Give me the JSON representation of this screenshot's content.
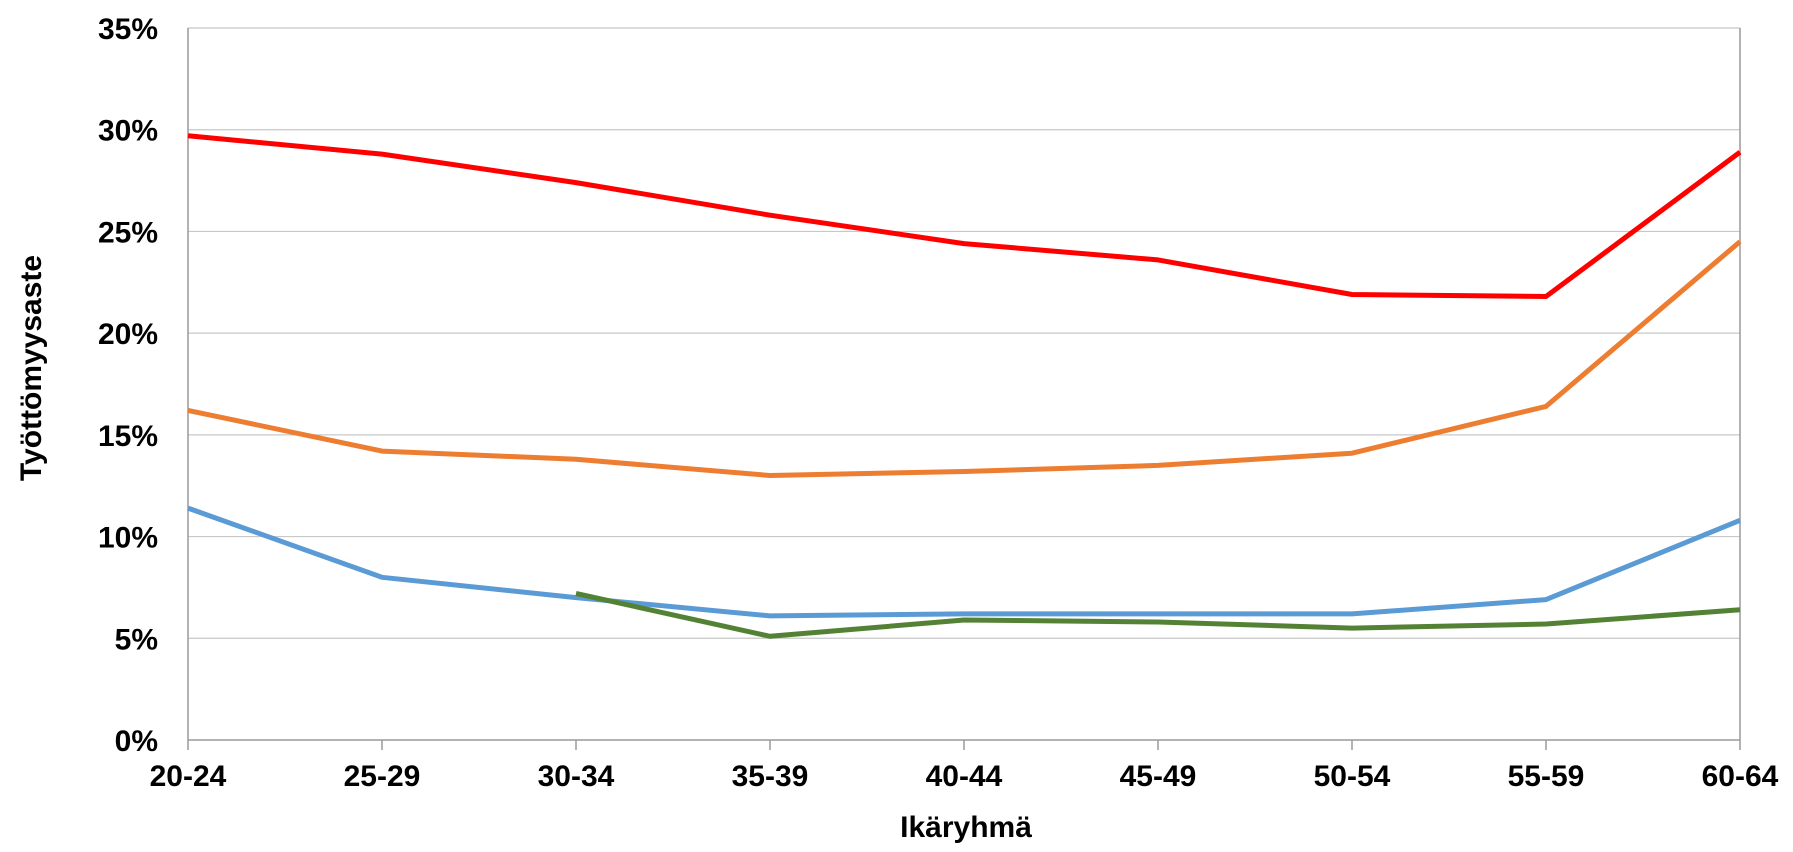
{
  "chart_data": {
    "type": "line",
    "title": "",
    "xlabel": "Ikäryhmä",
    "ylabel": "Työttömyysaste",
    "categories": [
      "20-24",
      "25-29",
      "30-34",
      "35-39",
      "40-44",
      "45-49",
      "50-54",
      "55-59",
      "60-64"
    ],
    "ylim": [
      0,
      35
    ],
    "ytick_values": [
      0,
      5,
      10,
      15,
      20,
      25,
      30,
      35
    ],
    "ytick_labels": [
      "0%",
      "5%",
      "10%",
      "15%",
      "20%",
      "25%",
      "30%",
      "35%"
    ],
    "grid": true,
    "legend": "none",
    "series": [
      {
        "color": "#ff0000",
        "values": [
          29.7,
          28.8,
          27.4,
          25.8,
          24.4,
          23.6,
          21.9,
          21.8,
          28.9
        ]
      },
      {
        "color": "#ed7d31",
        "values": [
          16.2,
          14.2,
          13.8,
          13.0,
          13.2,
          13.5,
          14.1,
          16.4,
          24.5
        ]
      },
      {
        "color": "#5b9bd5",
        "values": [
          11.4,
          8.0,
          7.0,
          6.1,
          6.2,
          6.2,
          6.2,
          6.9,
          10.8
        ]
      },
      {
        "color": "#548235",
        "values": [
          null,
          null,
          7.2,
          5.1,
          5.9,
          5.8,
          5.5,
          5.7,
          6.4
        ]
      }
    ]
  }
}
